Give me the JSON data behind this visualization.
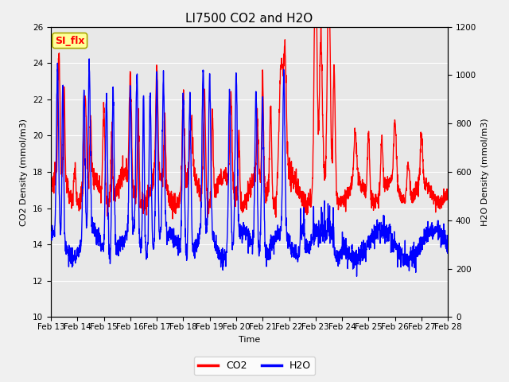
{
  "title": "LI7500 CO2 and H2O",
  "xlabel": "Time",
  "ylabel_left": "CO2 Density (mmol/m3)",
  "ylabel_right": "H2O Density (mmol/m3)",
  "ylim_left": [
    10,
    26
  ],
  "ylim_right": [
    0,
    1200
  ],
  "yticks_left": [
    10,
    12,
    14,
    16,
    18,
    20,
    22,
    24,
    26
  ],
  "yticks_right": [
    0,
    200,
    400,
    600,
    800,
    1000,
    1200
  ],
  "xtick_labels": [
    "Feb 13",
    "Feb 14",
    "Feb 15",
    "Feb 16",
    "Feb 17",
    "Feb 18",
    "Feb 19",
    "Feb 20",
    "Feb 21",
    "Feb 22",
    "Feb 23",
    "Feb 24",
    "Feb 25",
    "Feb 26",
    "Feb 27",
    "Feb 28"
  ],
  "legend_labels": [
    "CO2",
    "H2O"
  ],
  "line_width": 1.0,
  "background_color": "#f0f0f0",
  "plot_bg_color": "#e8e8e8",
  "annotation_text": "SI_flx",
  "annotation_bg": "#ffff99",
  "annotation_border": "#aaa800",
  "annotation_text_color": "red",
  "title_fontsize": 11,
  "axis_fontsize": 8,
  "tick_fontsize": 7.5,
  "legend_fontsize": 9
}
